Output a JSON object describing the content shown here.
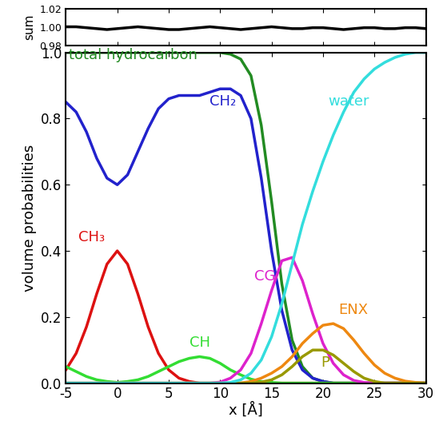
{
  "chart_data": [
    {
      "type": "line",
      "ylabel": "sum",
      "tick_labels": "y",
      "x": [
        -5,
        -4,
        -3,
        -2,
        -1,
        0,
        1,
        2,
        3,
        4,
        5,
        6,
        7,
        8,
        9,
        10,
        11,
        12,
        13,
        14,
        15,
        16,
        17,
        18,
        19,
        20,
        21,
        22,
        23,
        24,
        25,
        26,
        27,
        28,
        29,
        30
      ],
      "series": [
        {
          "name": "sum",
          "color": "#000000",
          "values": [
            1.0,
            1.0,
            0.999,
            0.998,
            0.997,
            0.998,
            0.999,
            1.0,
            0.999,
            0.998,
            0.997,
            0.997,
            0.998,
            0.999,
            1.0,
            0.999,
            0.998,
            0.997,
            0.998,
            0.999,
            1.0,
            0.999,
            0.998,
            0.998,
            0.999,
            0.999,
            0.998,
            0.997,
            0.998,
            0.999,
            0.999,
            0.998,
            0.998,
            0.999,
            0.999,
            0.998
          ]
        }
      ],
      "xlim": [
        -5,
        30
      ],
      "xticks": [
        -5,
        0,
        5,
        10,
        15,
        20,
        25,
        30
      ],
      "ylim": [
        0.98,
        1.02
      ],
      "yticks": [
        {
          "value": 0.98,
          "label": "0.98"
        },
        {
          "value": 1.0,
          "label": "1.00"
        },
        {
          "value": 1.02,
          "label": "1.02"
        }
      ]
    },
    {
      "type": "line",
      "xlabel": "x [Å]",
      "ylabel": "volume probabilities",
      "x": [
        -5,
        -4,
        -3,
        -2,
        -1,
        0,
        1,
        2,
        3,
        4,
        5,
        6,
        7,
        8,
        9,
        10,
        11,
        12,
        13,
        14,
        15,
        16,
        17,
        18,
        19,
        20,
        21,
        22,
        23,
        24,
        25,
        26,
        27,
        28,
        29,
        30
      ],
      "series": [
        {
          "name": "total hydrocarbon",
          "color": "#228B22",
          "values": [
            1,
            1,
            1,
            1,
            1,
            1,
            1,
            1,
            1,
            1,
            1,
            1,
            1,
            1,
            1,
            1,
            0.995,
            0.98,
            0.93,
            0.78,
            0.55,
            0.3,
            0.13,
            0.05,
            0.015,
            0.005,
            0,
            0,
            0,
            0,
            0,
            0,
            0,
            0,
            0,
            0
          ]
        },
        {
          "name": "CH₂",
          "color": "#2222cc",
          "values": [
            0.85,
            0.82,
            0.76,
            0.68,
            0.62,
            0.6,
            0.63,
            0.7,
            0.77,
            0.83,
            0.86,
            0.87,
            0.87,
            0.87,
            0.88,
            0.89,
            0.89,
            0.87,
            0.8,
            0.62,
            0.4,
            0.22,
            0.1,
            0.04,
            0.015,
            0.005,
            0,
            0,
            0,
            0,
            0,
            0,
            0,
            0,
            0,
            0
          ]
        },
        {
          "name": "CH₃",
          "color": "#dd1111",
          "values": [
            0.04,
            0.09,
            0.17,
            0.27,
            0.36,
            0.4,
            0.36,
            0.27,
            0.17,
            0.09,
            0.04,
            0.015,
            0.005,
            0,
            0,
            0,
            0,
            0,
            0,
            0,
            0,
            0,
            0,
            0,
            0,
            0,
            0,
            0,
            0,
            0,
            0,
            0,
            0,
            0,
            0,
            0
          ]
        },
        {
          "name": "CH",
          "color": "#33dd33",
          "values": [
            0.05,
            0.035,
            0.02,
            0.01,
            0.005,
            0.002,
            0.005,
            0.01,
            0.02,
            0.035,
            0.05,
            0.065,
            0.075,
            0.08,
            0.075,
            0.06,
            0.04,
            0.025,
            0.012,
            0.005,
            0.002,
            0,
            0,
            0,
            0,
            0,
            0,
            0,
            0,
            0,
            0,
            0,
            0,
            0,
            0,
            0
          ]
        },
        {
          "name": "CG",
          "color": "#dd22cc",
          "values": [
            0,
            0,
            0,
            0,
            0,
            0,
            0,
            0,
            0,
            0,
            0,
            0,
            0,
            0,
            0,
            0.003,
            0.015,
            0.04,
            0.09,
            0.18,
            0.28,
            0.37,
            0.38,
            0.31,
            0.21,
            0.12,
            0.06,
            0.025,
            0.008,
            0.002,
            0,
            0,
            0,
            0,
            0,
            0
          ]
        },
        {
          "name": "ENX",
          "color": "#ee8811",
          "values": [
            0,
            0,
            0,
            0,
            0,
            0,
            0,
            0,
            0,
            0,
            0,
            0,
            0,
            0,
            0,
            0,
            0,
            0,
            0.005,
            0.015,
            0.03,
            0.05,
            0.08,
            0.12,
            0.15,
            0.175,
            0.18,
            0.165,
            0.13,
            0.09,
            0.055,
            0.03,
            0.015,
            0.006,
            0.002,
            0
          ]
        },
        {
          "name": "P",
          "color": "#999900",
          "values": [
            0,
            0,
            0,
            0,
            0,
            0,
            0,
            0,
            0,
            0,
            0,
            0,
            0,
            0,
            0,
            0,
            0,
            0,
            0,
            0.003,
            0.01,
            0.025,
            0.05,
            0.08,
            0.1,
            0.1,
            0.085,
            0.06,
            0.035,
            0.015,
            0.005,
            0,
            0,
            0,
            0,
            0
          ]
        },
        {
          "name": "water",
          "color": "#33dddd",
          "values": [
            0,
            0,
            0,
            0,
            0,
            0,
            0,
            0,
            0,
            0,
            0,
            0,
            0,
            0,
            0,
            0,
            0.002,
            0.01,
            0.03,
            0.07,
            0.14,
            0.24,
            0.36,
            0.48,
            0.58,
            0.67,
            0.75,
            0.82,
            0.88,
            0.92,
            0.95,
            0.97,
            0.985,
            0.995,
            1.0,
            1.0
          ]
        }
      ],
      "xlim": [
        -5,
        30
      ],
      "xticks": [
        -5,
        0,
        5,
        10,
        15,
        20,
        25,
        30
      ],
      "ylim": [
        0,
        1.0
      ],
      "yticks": [
        {
          "value": 0,
          "label": "0.0"
        },
        {
          "value": 0.2,
          "label": "0.2"
        },
        {
          "value": 0.4,
          "label": "0.4"
        },
        {
          "value": 0.6,
          "label": "0.6"
        },
        {
          "value": 0.8,
          "label": "0.8"
        },
        {
          "value": 1.0,
          "label": "1.0"
        }
      ]
    }
  ]
}
